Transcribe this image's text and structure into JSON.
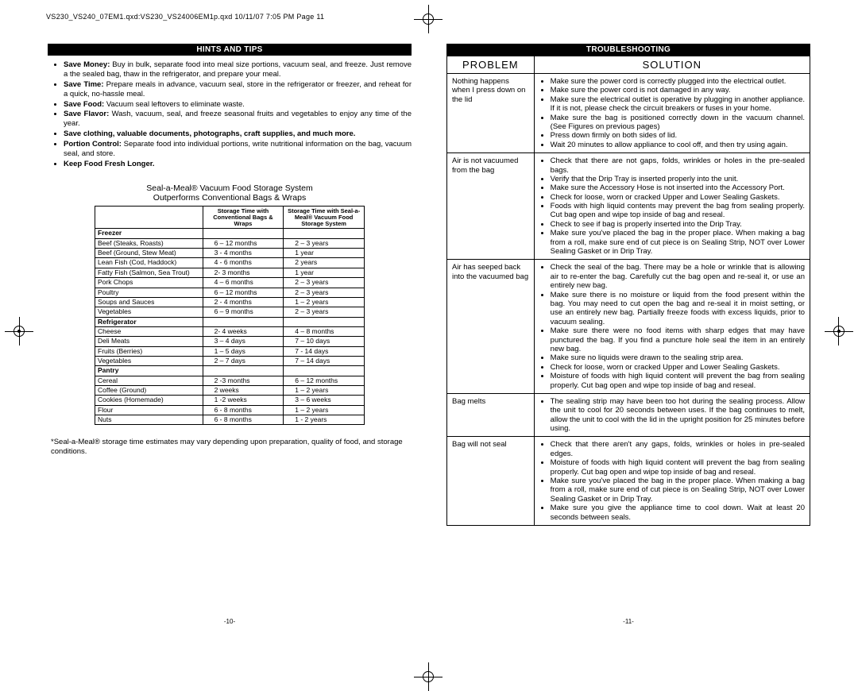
{
  "header": "VS230_VS240_07EM1.qxd:VS230_VS24006EM1p.qxd  10/11/07  7:05 PM  Page 11",
  "left": {
    "bar": "HINTS AND TIPS",
    "tips": [
      {
        "lead": "Save Money:",
        "rest": " Buy in bulk, separate food into meal size portions, vacuum seal, and freeze. Just remove a the sealed bag, thaw in the refrigerator, and prepare your meal."
      },
      {
        "lead": "Save Time:",
        "rest": " Prepare meals in advance, vacuum seal, store in the refrigerator or freezer, and reheat for a quick, no-hassle meal."
      },
      {
        "lead": "Save Food:",
        "rest": " Vacuum seal leftovers to eliminate waste."
      },
      {
        "lead": "Save Flavor:",
        "rest": " Wash, vacuum, seal, and freeze seasonal fruits and vegetables to enjoy any time of the year."
      },
      {
        "lead": "Save clothing, valuable documents, photographs, craft supplies, and much more.",
        "rest": ""
      },
      {
        "lead": "Portion Control:",
        "rest": " Separate food into individual portions, write nutritional information on the bag, vacuum seal, and store."
      },
      {
        "lead": "Keep Food Fresh Longer.",
        "rest": ""
      }
    ],
    "table_title1": "Seal-a-Meal® Vacuum Food Storage System",
    "table_title2": "Outperforms Conventional Bags & Wraps",
    "col2": "Storage Time with Conventional Bags & Wraps",
    "col3": "Storage Time with Seal-a-Meal® Vacuum Food Storage System",
    "cat_freezer": "Freezer",
    "cat_fridge": "Refrigerator",
    "cat_pantry": "Pantry",
    "freezer": [
      [
        "Beef  (Steaks, Roasts)",
        "6 – 12 months",
        "2 – 3 years"
      ],
      [
        "Beef (Ground, Stew Meat)",
        "3 - 4 months",
        "1 year"
      ],
      [
        "Lean Fish (Cod, Haddock)",
        "4 - 6 months",
        "2 years"
      ],
      [
        "Fatty Fish (Salmon, Sea Trout)",
        "2- 3 months",
        "1 year"
      ],
      [
        "Pork Chops",
        "4 – 6 months",
        "2 – 3 years"
      ],
      [
        "Poultry",
        "6 – 12 months",
        "2 – 3 years"
      ],
      [
        "Soups and Sauces",
        "2 - 4 months",
        "1 – 2 years"
      ],
      [
        "Vegetables",
        "6 – 9 months",
        "2 – 3 years"
      ]
    ],
    "fridge": [
      [
        "Cheese",
        "2- 4 weeks",
        "4 – 8 months"
      ],
      [
        "Deli Meats",
        "3 – 4 days",
        "7 – 10 days"
      ],
      [
        "Fruits (Berries)",
        "1 – 5 days",
        "7 - 14 days"
      ],
      [
        "Vegetables",
        "2 – 7 days",
        "7 – 14 days"
      ]
    ],
    "pantry": [
      [
        "Cereal",
        "2 -3 months",
        "6 – 12 months"
      ],
      [
        "Coffee (Ground)",
        "2 weeks",
        "1 – 2 years"
      ],
      [
        "Cookies (Homemade)",
        "1 -2 weeks",
        "3 – 6 weeks"
      ],
      [
        "Flour",
        "6 - 8 months",
        "1 – 2 years"
      ],
      [
        "Nuts",
        "6 - 8 months",
        "1 - 2 years"
      ]
    ],
    "footnote": "*Seal-a-Meal® storage time estimates may vary depending upon preparation, quality of food, and storage conditions.",
    "page": "-10-"
  },
  "right": {
    "bar": "TROUBLESHOOTING",
    "th_problem": "PROBLEM",
    "th_solution": "SOLUTION",
    "rows": [
      {
        "p": "Nothing happens when I press down on the lid",
        "s": [
          "Make sure the power cord is correctly plugged into the electrical outlet.",
          "Make sure the power cord is not damaged in any way.",
          "Make sure the electrical outlet is operative by plugging in another appliance. If it is not, please check the circuit breakers or fuses in your home.",
          "Make sure the bag is positioned correctly down in the vacuum channel. (See Figures on previous pages)",
          "Press down firmly on both sides of lid.",
          "Wait 20 minutes to allow appliance to cool off, and then try using again."
        ]
      },
      {
        "p": "Air is not vacuumed from the bag",
        "s": [
          "Check that there are not gaps, folds, wrinkles or holes in the pre-sealed bags.",
          "Verify that the Drip Tray is inserted properly into the unit.",
          "Make sure the Accessory Hose is not inserted into the Accessory Port.",
          "Check for loose, worn or cracked Upper and Lower Sealing Gaskets.",
          "Foods with high liquid contents may prevent the bag from sealing properly. Cut bag open and wipe top inside of bag and reseal.",
          "Check to see if bag is properly inserted into the Drip Tray.",
          "Make sure you've placed the bag in the proper place. When making a bag from a roll, make sure end of cut piece is on Sealing Strip, NOT over Lower Sealing Gasket or in Drip Tray."
        ]
      },
      {
        "p": "Air has seeped back into the vacuumed bag",
        "s": [
          "Check the seal of the bag. There may be a hole or wrinkle that is allowing air to re-enter the bag. Carefully cut the bag open and re-seal it, or use an entirely new bag.",
          "Make sure there is no moisture or liquid from the food present within the bag. You may need to cut open the bag and re-seal it in moist setting, or use an entirely new bag. Partially freeze foods with excess liquids, prior to vacuum sealing.",
          "Make sure there were no food items with sharp edges that may have punctured the bag. If you find a puncture hole seal the item in an entirely new bag.",
          "Make sure no liquids were drawn to the sealing strip area.",
          "Check for loose, worn or cracked Upper and Lower Sealing Gaskets.",
          "Moisture of foods with high liquid content will prevent the bag from sealing properly. Cut bag open and wipe top inside of bag and reseal."
        ]
      },
      {
        "p": "Bag melts",
        "s": [
          "The sealing strip may have been too hot during the sealing process. Allow the unit to cool for 20 seconds between uses. If the bag continues to melt, allow the unit to cool with the lid in the upright position for 25 minutes before using."
        ]
      },
      {
        "p": "Bag will not seal",
        "s": [
          "Check that there aren't any gaps, folds, wrinkles or holes in pre-sealed edges.",
          "Moisture of foods with high liquid content will prevent the bag from sealing properly. Cut bag open and wipe top inside of bag and reseal.",
          "Make sure you've placed the bag in the proper place. When making a bag from a roll, make sure end of cut piece is on Sealing Strip, NOT over Lower Sealing Gasket or in Drip Tray.",
          "Make sure you give the appliance time to cool down.  Wait at least 20 seconds between seals."
        ]
      }
    ],
    "page": "-11-"
  }
}
